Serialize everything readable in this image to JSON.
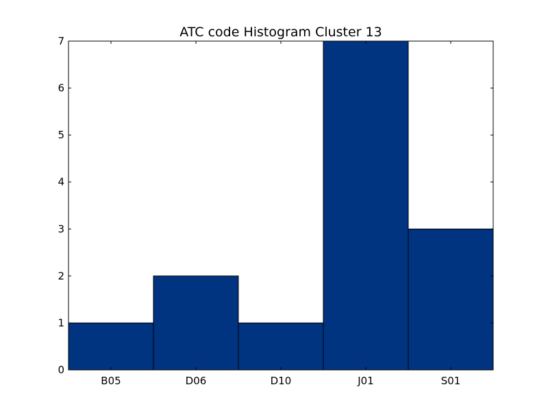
{
  "chart_data": {
    "type": "bar",
    "title": "ATC code Histogram Cluster 13",
    "xlabel": "",
    "ylabel": "",
    "categories": [
      "B05",
      "D06",
      "D10",
      "J01",
      "S01"
    ],
    "values": [
      1,
      2,
      1,
      7,
      3
    ],
    "ylim": [
      0,
      7
    ],
    "yticks": [
      "0",
      "1",
      "2",
      "3",
      "4",
      "5",
      "6",
      "7"
    ],
    "grid": false,
    "legend": "none",
    "bar_color": "#003380"
  }
}
